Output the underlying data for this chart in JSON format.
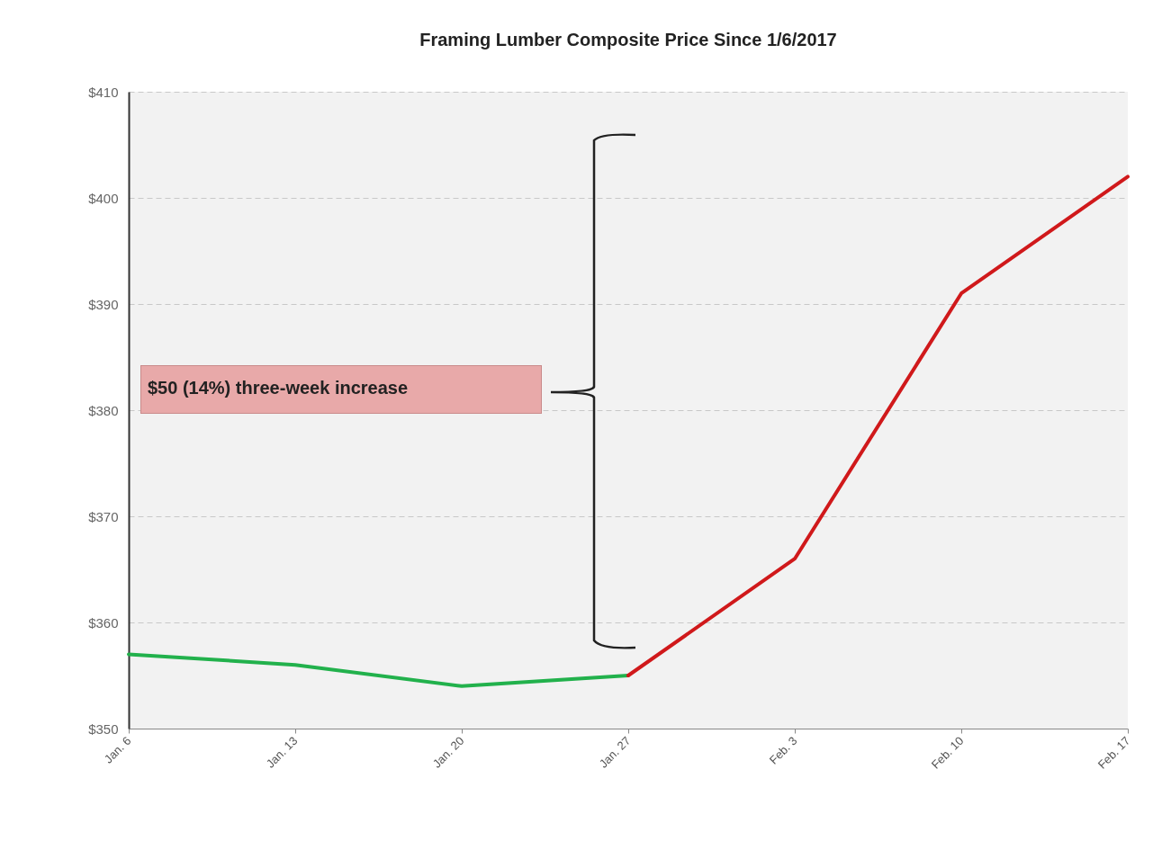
{
  "chart_data": {
    "type": "line",
    "title": "Framing Lumber Composite Price Since 1/6/2017",
    "categories": [
      "Jan. 6",
      "Jan. 13",
      "Jan. 20",
      "Jan. 27",
      "Feb. 3",
      "Feb. 10",
      "Feb. 17"
    ],
    "series": [
      {
        "color": "#22b14c",
        "values": [
          357,
          356,
          354,
          355,
          null,
          null,
          null
        ]
      },
      {
        "color": "#d0191b",
        "values": [
          null,
          null,
          null,
          355,
          366,
          391,
          402
        ]
      }
    ],
    "ylim": [
      350,
      410
    ],
    "yticks": [
      {
        "value": 350,
        "label": "$350"
      },
      {
        "value": 360,
        "label": "$360"
      },
      {
        "value": 370,
        "label": "$370"
      },
      {
        "value": 380,
        "label": "$380"
      },
      {
        "value": 390,
        "label": "$390"
      },
      {
        "value": 400,
        "label": "$400"
      },
      {
        "value": 410,
        "label": "$410"
      }
    ],
    "grid": "y",
    "line_style": "solid",
    "marker": "none",
    "annotations": [
      "$50 (14%) three-week increase"
    ]
  }
}
